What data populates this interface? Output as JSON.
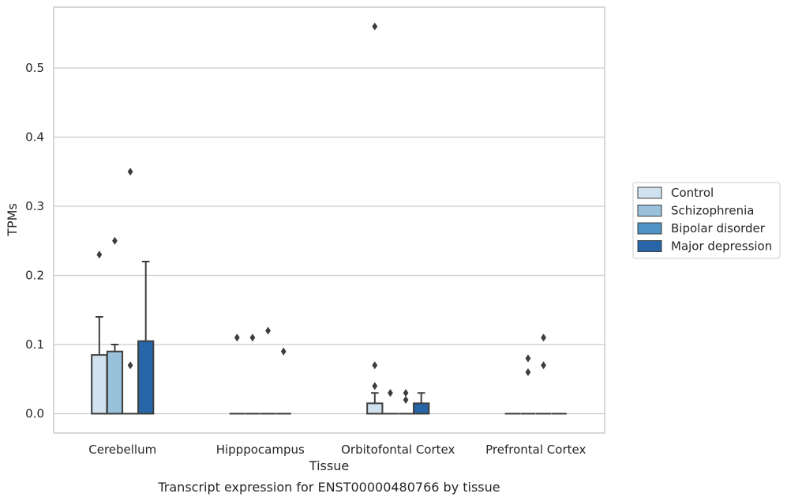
{
  "chart_data": {
    "type": "box",
    "title": "Transcript expression for ENST00000480766 by tissue",
    "xlabel": "Tissue",
    "ylabel": "TPMs",
    "ylim": [
      -0.028,
      0.588
    ],
    "yticks": [
      0.0,
      0.1,
      0.2,
      0.3,
      0.4,
      0.5
    ],
    "ytick_labels": [
      "0.0",
      "0.1",
      "0.2",
      "0.3",
      "0.4",
      "0.5"
    ],
    "grid": "horizontal",
    "legend_position": "right",
    "categories": [
      "Cerebellum",
      "Hipppocampus",
      "Orbitofontal Cortex",
      "Prefrontal Cortex"
    ],
    "series": [
      {
        "name": "Control",
        "color": "#d0e1f0",
        "boxes": [
          {
            "q1": 0.0,
            "median": 0.0,
            "q3": 0.085,
            "whisker_low": 0.0,
            "whisker_high": 0.14,
            "outliers": [
              0.23
            ]
          },
          {
            "q1": 0.0,
            "median": 0.0,
            "q3": 0.0,
            "whisker_low": 0.0,
            "whisker_high": 0.0,
            "outliers": [
              0.11
            ]
          },
          {
            "q1": 0.0,
            "median": 0.0,
            "q3": 0.015,
            "whisker_low": 0.0,
            "whisker_high": 0.03,
            "outliers": [
              0.04,
              0.07,
              0.56
            ]
          },
          {
            "q1": 0.0,
            "median": 0.0,
            "q3": 0.0,
            "whisker_low": 0.0,
            "whisker_high": 0.0,
            "outliers": []
          }
        ]
      },
      {
        "name": "Schizophrenia",
        "color": "#9ac1db",
        "boxes": [
          {
            "q1": 0.0,
            "median": 0.0,
            "q3": 0.09,
            "whisker_low": 0.0,
            "whisker_high": 0.1,
            "outliers": [
              0.25
            ]
          },
          {
            "q1": 0.0,
            "median": 0.0,
            "q3": 0.0,
            "whisker_low": 0.0,
            "whisker_high": 0.0,
            "outliers": [
              0.11
            ]
          },
          {
            "q1": 0.0,
            "median": 0.0,
            "q3": 0.0,
            "whisker_low": 0.0,
            "whisker_high": 0.0,
            "outliers": [
              0.03
            ]
          },
          {
            "q1": 0.0,
            "median": 0.0,
            "q3": 0.0,
            "whisker_low": 0.0,
            "whisker_high": 0.0,
            "outliers": [
              0.06,
              0.08
            ]
          }
        ]
      },
      {
        "name": "Bipolar disorder",
        "color": "#5093c5",
        "boxes": [
          {
            "q1": 0.0,
            "median": 0.0,
            "q3": 0.0,
            "whisker_low": 0.0,
            "whisker_high": 0.0,
            "outliers": [
              0.07,
              0.35
            ]
          },
          {
            "q1": 0.0,
            "median": 0.0,
            "q3": 0.0,
            "whisker_low": 0.0,
            "whisker_high": 0.0,
            "outliers": [
              0.12
            ]
          },
          {
            "q1": 0.0,
            "median": 0.0,
            "q3": 0.0,
            "whisker_low": 0.0,
            "whisker_high": 0.0,
            "outliers": [
              0.02,
              0.03
            ]
          },
          {
            "q1": 0.0,
            "median": 0.0,
            "q3": 0.0,
            "whisker_low": 0.0,
            "whisker_high": 0.0,
            "outliers": [
              0.07,
              0.11
            ]
          }
        ]
      },
      {
        "name": "Major depression",
        "color": "#2765a6",
        "boxes": [
          {
            "q1": 0.0,
            "median": 0.0,
            "q3": 0.105,
            "whisker_low": 0.0,
            "whisker_high": 0.22,
            "outliers": []
          },
          {
            "q1": 0.0,
            "median": 0.0,
            "q3": 0.0,
            "whisker_low": 0.0,
            "whisker_high": 0.0,
            "outliers": [
              0.09
            ]
          },
          {
            "q1": 0.0,
            "median": 0.0,
            "q3": 0.015,
            "whisker_low": 0.0,
            "whisker_high": 0.03,
            "outliers": []
          },
          {
            "q1": 0.0,
            "median": 0.0,
            "q3": 0.0,
            "whisker_low": 0.0,
            "whisker_high": 0.0,
            "outliers": []
          }
        ]
      }
    ]
  }
}
